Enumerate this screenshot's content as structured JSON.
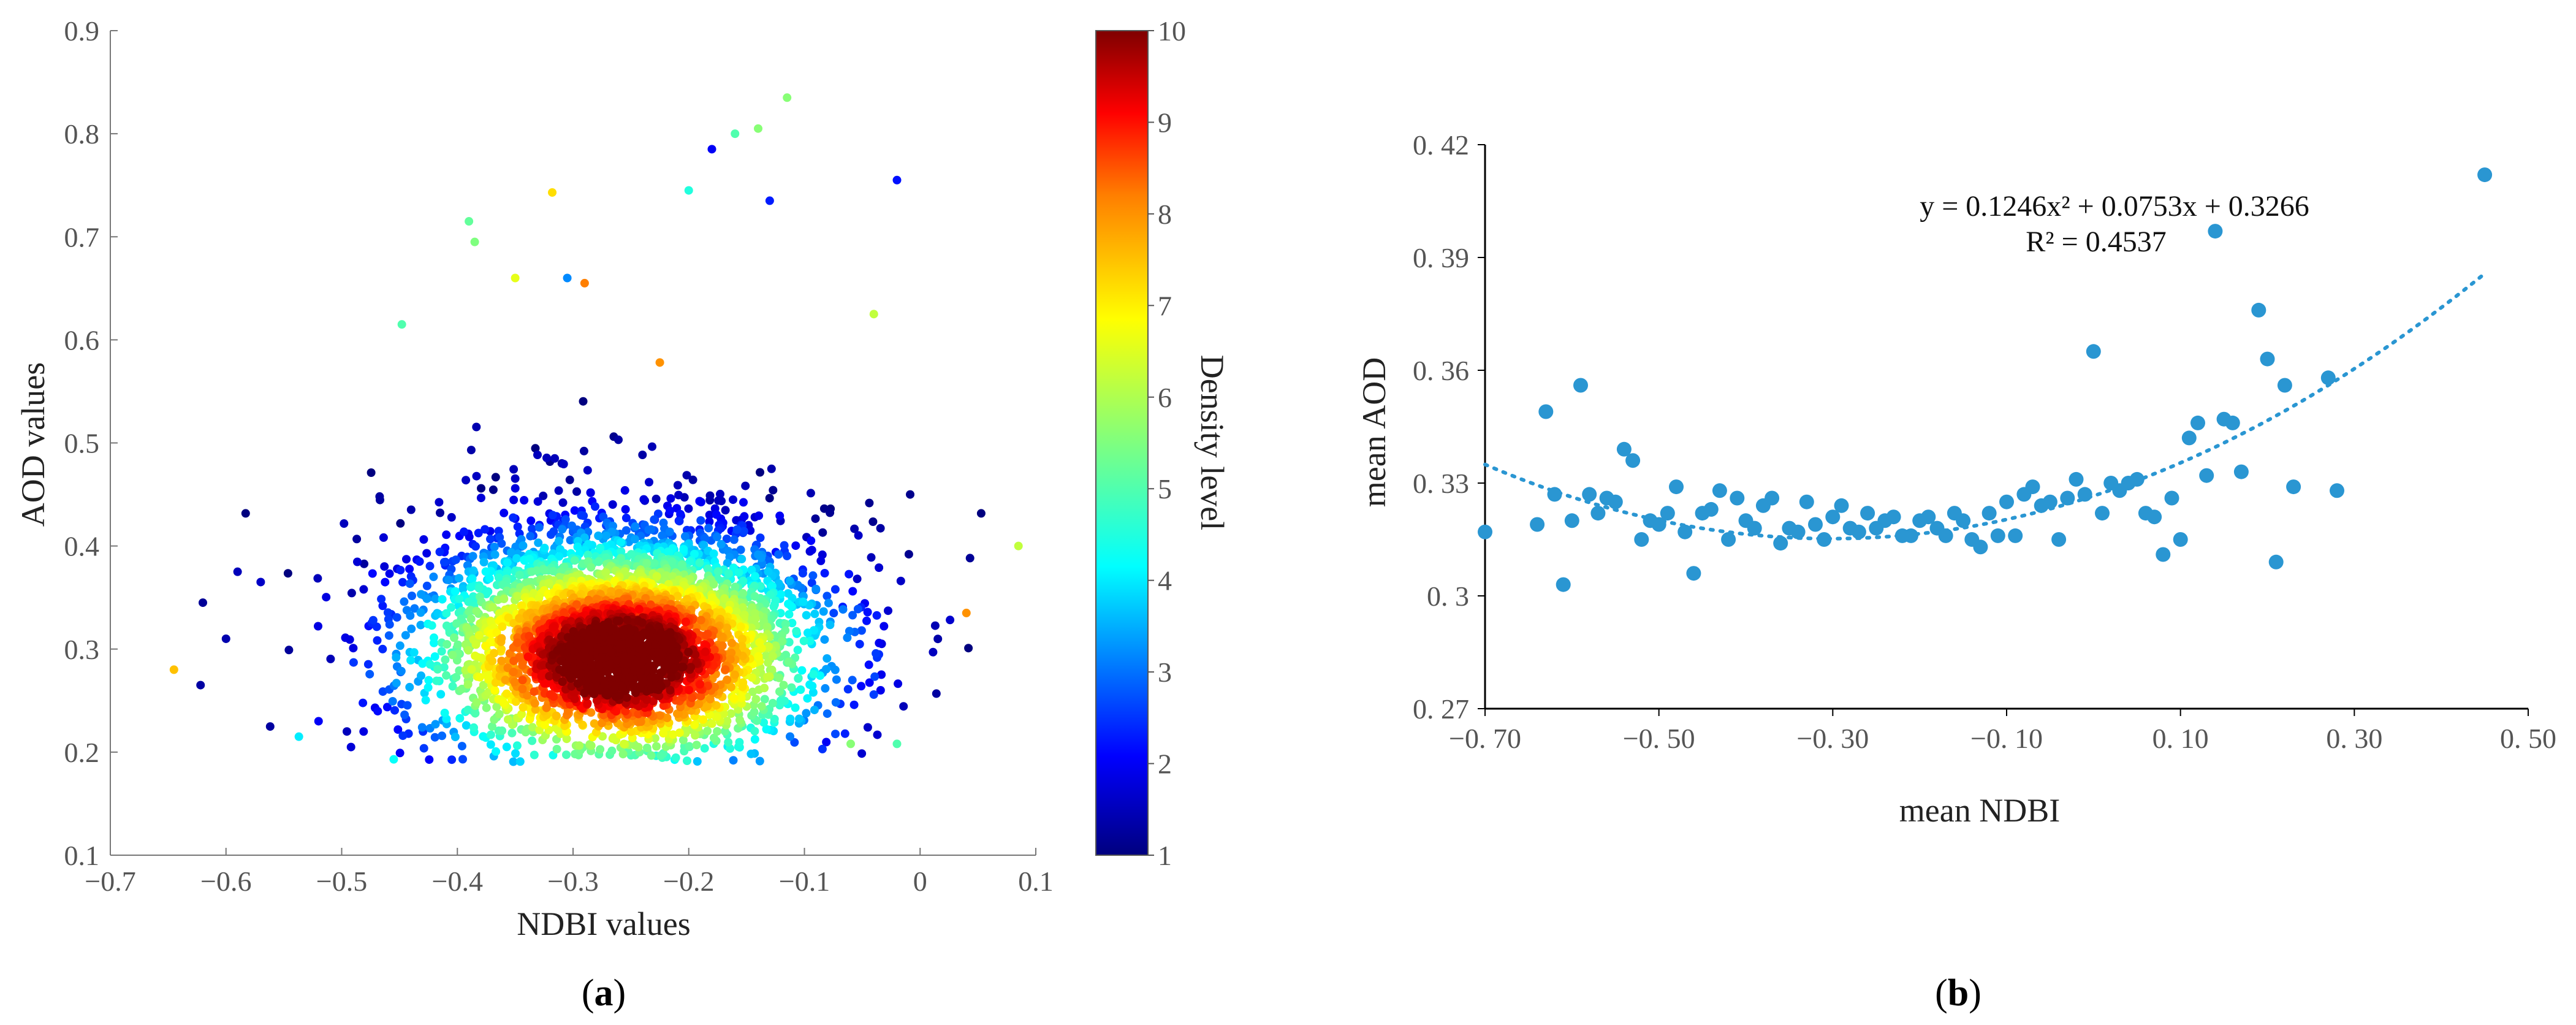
{
  "chart_data": [
    {
      "id": "a",
      "type": "scatter",
      "caption_letter": "a",
      "xlabel": "NDBI values",
      "ylabel": "AOD values",
      "xlim": [
        -0.7,
        0.1
      ],
      "ylim": [
        0.1,
        0.9
      ],
      "xticks": [
        "−0.7",
        "−0.6",
        "−0.5",
        "−0.4",
        "−0.3",
        "−0.2",
        "−0.1",
        "0",
        "0.1"
      ],
      "xtick_values": [
        -0.7,
        -0.6,
        -0.5,
        -0.4,
        -0.3,
        -0.2,
        -0.1,
        0,
        0.1
      ],
      "yticks": [
        "0.1",
        "0.2",
        "0.3",
        "0.4",
        "0.5",
        "0.6",
        "0.7",
        "0.8",
        "0.9"
      ],
      "ytick_values": [
        0.1,
        0.2,
        0.3,
        0.4,
        0.5,
        0.6,
        0.7,
        0.8,
        0.9
      ],
      "color_encoding": "density",
      "colorbar": {
        "label": "Density level",
        "range": [
          1,
          10
        ],
        "ticks": [
          "1",
          "2",
          "3",
          "4",
          "5",
          "6",
          "7",
          "8",
          "9",
          "10"
        ],
        "colormap": [
          "#00007f",
          "#0000ff",
          "#007fff",
          "#00ffff",
          "#7fff7f",
          "#ffff00",
          "#ff7f00",
          "#ff0000",
          "#7f0000"
        ]
      },
      "sample_points": [
        {
          "x": -0.645,
          "y": 0.28,
          "d": 7.5
        },
        {
          "x": -0.622,
          "y": 0.265,
          "d": 1.3
        },
        {
          "x": -0.62,
          "y": 0.345,
          "d": 1.2
        },
        {
          "x": -0.6,
          "y": 0.31,
          "d": 1.4
        },
        {
          "x": -0.59,
          "y": 0.375,
          "d": 1.5
        },
        {
          "x": -0.57,
          "y": 0.365,
          "d": 1.6
        },
        {
          "x": -0.537,
          "y": 0.215,
          "d": 4.0
        },
        {
          "x": -0.52,
          "y": 0.23,
          "d": 2.0
        },
        {
          "x": -0.455,
          "y": 0.193,
          "d": 4.2
        },
        {
          "x": -0.448,
          "y": 0.615,
          "d": 5.0
        },
        {
          "x": -0.39,
          "y": 0.715,
          "d": 5.2
        },
        {
          "x": -0.385,
          "y": 0.695,
          "d": 5.5
        },
        {
          "x": -0.35,
          "y": 0.66,
          "d": 6.6
        },
        {
          "x": -0.318,
          "y": 0.743,
          "d": 7.2
        },
        {
          "x": -0.305,
          "y": 0.66,
          "d": 3.2
        },
        {
          "x": -0.29,
          "y": 0.655,
          "d": 8.2
        },
        {
          "x": -0.225,
          "y": 0.578,
          "d": 8.0
        },
        {
          "x": -0.2,
          "y": 0.745,
          "d": 4.5
        },
        {
          "x": -0.18,
          "y": 0.785,
          "d": 2.0
        },
        {
          "x": -0.16,
          "y": 0.8,
          "d": 5.0
        },
        {
          "x": -0.14,
          "y": 0.805,
          "d": 5.6
        },
        {
          "x": -0.13,
          "y": 0.735,
          "d": 2.3
        },
        {
          "x": -0.115,
          "y": 0.835,
          "d": 5.6
        },
        {
          "x": -0.02,
          "y": 0.755,
          "d": 2.2
        },
        {
          "x": -0.04,
          "y": 0.625,
          "d": 6.2
        },
        {
          "x": 0.04,
          "y": 0.335,
          "d": 8.0
        },
        {
          "x": 0.085,
          "y": 0.4,
          "d": 6.2
        },
        {
          "x": -0.06,
          "y": 0.208,
          "d": 5.6
        },
        {
          "x": -0.02,
          "y": 0.208,
          "d": 5.0
        }
      ]
    },
    {
      "id": "b",
      "type": "scatter",
      "caption_letter": "b",
      "xlabel": "mean NDBI",
      "ylabel": "mean AOD",
      "xlim": [
        -0.7,
        0.5
      ],
      "ylim": [
        0.27,
        0.42
      ],
      "xticks": [
        "−0. 70",
        "−0. 50",
        "−0. 30",
        "−0. 10",
        "0. 10",
        "0. 30",
        "0. 50"
      ],
      "xtick_values": [
        -0.7,
        -0.5,
        -0.3,
        -0.1,
        0.1,
        0.3,
        0.5
      ],
      "yticks": [
        "0. 27",
        "0. 3",
        "0. 33",
        "0. 36",
        "0. 39",
        "0. 42"
      ],
      "ytick_values": [
        0.27,
        0.3,
        0.33,
        0.36,
        0.39,
        0.42
      ],
      "point_color": "#2a96d2",
      "trendline": {
        "type": "polynomial",
        "coefficients": {
          "a": 0.1246,
          "b": 0.0753,
          "c": 0.3266
        },
        "x_range": [
          -0.7,
          0.45
        ],
        "equation": "y = 0.1246x² + 0.0753x + 0.3266",
        "r_squared": "R² = 0.4537"
      },
      "points": [
        [
          -0.7,
          0.317
        ],
        [
          -0.64,
          0.319
        ],
        [
          -0.63,
          0.349
        ],
        [
          -0.62,
          0.327
        ],
        [
          -0.61,
          0.303
        ],
        [
          -0.6,
          0.32
        ],
        [
          -0.59,
          0.356
        ],
        [
          -0.58,
          0.327
        ],
        [
          -0.57,
          0.322
        ],
        [
          -0.56,
          0.326
        ],
        [
          -0.55,
          0.325
        ],
        [
          -0.54,
          0.339
        ],
        [
          -0.53,
          0.336
        ],
        [
          -0.52,
          0.315
        ],
        [
          -0.51,
          0.32
        ],
        [
          -0.5,
          0.319
        ],
        [
          -0.49,
          0.322
        ],
        [
          -0.48,
          0.329
        ],
        [
          -0.47,
          0.317
        ],
        [
          -0.46,
          0.306
        ],
        [
          -0.45,
          0.322
        ],
        [
          -0.44,
          0.323
        ],
        [
          -0.43,
          0.328
        ],
        [
          -0.42,
          0.315
        ],
        [
          -0.41,
          0.326
        ],
        [
          -0.4,
          0.32
        ],
        [
          -0.39,
          0.318
        ],
        [
          -0.38,
          0.324
        ],
        [
          -0.37,
          0.326
        ],
        [
          -0.36,
          0.314
        ],
        [
          -0.35,
          0.318
        ],
        [
          -0.34,
          0.317
        ],
        [
          -0.33,
          0.325
        ],
        [
          -0.32,
          0.319
        ],
        [
          -0.31,
          0.315
        ],
        [
          -0.3,
          0.321
        ],
        [
          -0.29,
          0.324
        ],
        [
          -0.28,
          0.318
        ],
        [
          -0.27,
          0.317
        ],
        [
          -0.26,
          0.322
        ],
        [
          -0.25,
          0.318
        ],
        [
          -0.24,
          0.32
        ],
        [
          -0.23,
          0.321
        ],
        [
          -0.22,
          0.316
        ],
        [
          -0.21,
          0.316
        ],
        [
          -0.2,
          0.32
        ],
        [
          -0.19,
          0.321
        ],
        [
          -0.18,
          0.318
        ],
        [
          -0.17,
          0.316
        ],
        [
          -0.16,
          0.322
        ],
        [
          -0.15,
          0.32
        ],
        [
          -0.14,
          0.315
        ],
        [
          -0.13,
          0.313
        ],
        [
          -0.12,
          0.322
        ],
        [
          -0.11,
          0.316
        ],
        [
          -0.1,
          0.325
        ],
        [
          -0.09,
          0.316
        ],
        [
          -0.08,
          0.327
        ],
        [
          -0.07,
          0.329
        ],
        [
          -0.06,
          0.324
        ],
        [
          -0.05,
          0.325
        ],
        [
          -0.04,
          0.315
        ],
        [
          -0.03,
          0.326
        ],
        [
          -0.02,
          0.331
        ],
        [
          -0.01,
          0.327
        ],
        [
          0.0,
          0.365
        ],
        [
          0.01,
          0.322
        ],
        [
          0.02,
          0.33
        ],
        [
          0.03,
          0.328
        ],
        [
          0.04,
          0.33
        ],
        [
          0.05,
          0.331
        ],
        [
          0.06,
          0.322
        ],
        [
          0.07,
          0.321
        ],
        [
          0.08,
          0.311
        ],
        [
          0.09,
          0.326
        ],
        [
          0.1,
          0.315
        ],
        [
          0.11,
          0.342
        ],
        [
          0.12,
          0.346
        ],
        [
          0.13,
          0.332
        ],
        [
          0.14,
          0.397
        ],
        [
          0.15,
          0.347
        ],
        [
          0.16,
          0.346
        ],
        [
          0.17,
          0.333
        ],
        [
          0.19,
          0.376
        ],
        [
          0.2,
          0.363
        ],
        [
          0.21,
          0.309
        ],
        [
          0.22,
          0.356
        ],
        [
          0.23,
          0.329
        ],
        [
          0.27,
          0.358
        ],
        [
          0.28,
          0.328
        ],
        [
          0.45,
          0.412
        ]
      ]
    }
  ]
}
